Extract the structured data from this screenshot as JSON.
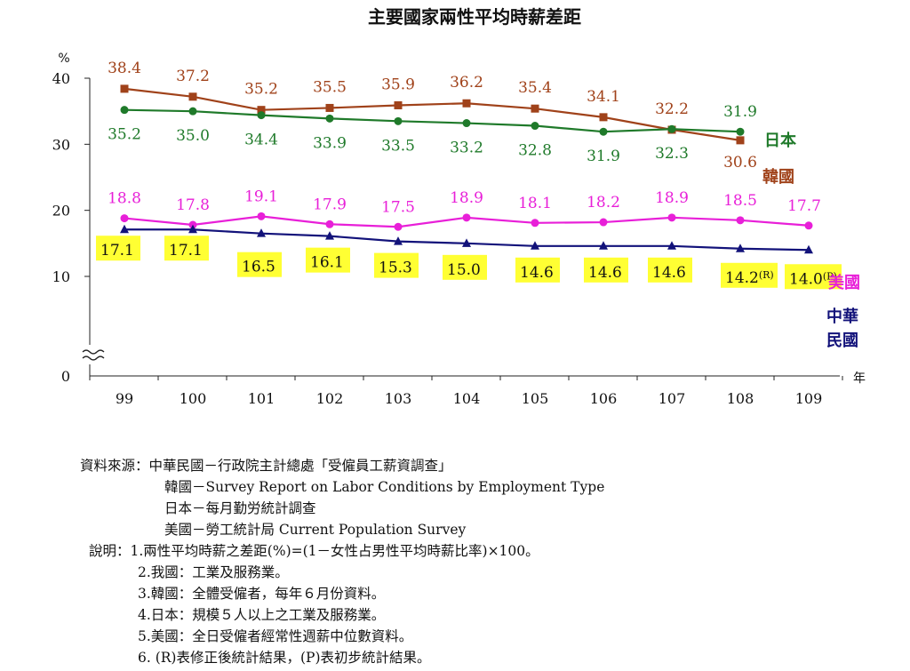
{
  "chart_data": {
    "type": "line",
    "title": "主要國家兩性平均時薪差距",
    "y_unit": "%",
    "x_unit": "年",
    "categories": [
      "99",
      "100",
      "101",
      "102",
      "103",
      "104",
      "105",
      "106",
      "107",
      "108",
      "109"
    ],
    "ylim": [
      0,
      40
    ],
    "yticks": [
      0,
      10,
      20,
      30,
      40
    ],
    "axis_break": true,
    "grid": false,
    "series": [
      {
        "name": "韓國",
        "color": "#a0421a",
        "marker": "square",
        "values": [
          38.4,
          37.2,
          35.2,
          35.5,
          35.9,
          36.2,
          35.4,
          34.1,
          32.2,
          30.6,
          null
        ],
        "labels": [
          "38.4",
          "37.2",
          "35.2",
          "35.5",
          "35.9",
          "36.2",
          "35.4",
          "34.1",
          "32.2",
          "30.6",
          ""
        ]
      },
      {
        "name": "日本",
        "color": "#1f7a2a",
        "marker": "circle",
        "values": [
          35.2,
          35.0,
          34.4,
          33.9,
          33.5,
          33.2,
          32.8,
          31.9,
          32.3,
          31.9,
          null
        ],
        "labels": [
          "35.2",
          "35.0",
          "34.4",
          "33.9",
          "33.5",
          "33.2",
          "32.8",
          "31.9",
          "32.3",
          "31.9",
          ""
        ]
      },
      {
        "name": "美國",
        "color": "#e81fd8",
        "marker": "circle",
        "values": [
          18.8,
          17.8,
          19.1,
          17.9,
          17.5,
          18.9,
          18.1,
          18.2,
          18.9,
          18.5,
          17.7
        ],
        "labels": [
          "18.8",
          "17.8",
          "19.1",
          "17.9",
          "17.5",
          "18.9",
          "18.1",
          "18.2",
          "18.9",
          "18.5",
          "17.7"
        ]
      },
      {
        "name": "中華民國",
        "color": "#12127a",
        "marker": "triangle",
        "values": [
          17.1,
          17.1,
          16.5,
          16.1,
          15.3,
          15.0,
          14.6,
          14.6,
          14.6,
          14.2,
          14.0
        ],
        "labels": [
          "17.1",
          "17.1",
          "16.5",
          "16.1",
          "15.3",
          "15.0",
          "14.6",
          "14.6",
          "14.6",
          "14.2",
          "14.0"
        ],
        "label_suffixes": [
          "",
          "",
          "",
          "",
          "",
          "",
          "",
          "",
          "",
          "(R)",
          "(P)"
        ],
        "label_highlight": "#ffff33"
      }
    ]
  },
  "notes": {
    "source_label": "資料來源：",
    "sources": [
      "中華民國－行政院主計總處「受僱員工薪資調查」",
      "韓國－Survey Report on Labor Conditions by Employment Type",
      "日本－每月勤労統計調查",
      "美國－勞工統計局  Current Population Survey"
    ],
    "explain_label": "說明：",
    "explanations": [
      "1.兩性平均時薪之差距(%)=(1－女性占男性平均時薪比率)×100。",
      "2.我國：工業及服務業。",
      "3.韓國：全體受僱者，每年６月份資料。",
      "4.日本：規模５人以上之工業及服務業。",
      "5.美國：全日受僱者經常性週薪中位數資料。",
      "6. (R)表修正後統計結果，(P)表初步統計結果。"
    ]
  }
}
